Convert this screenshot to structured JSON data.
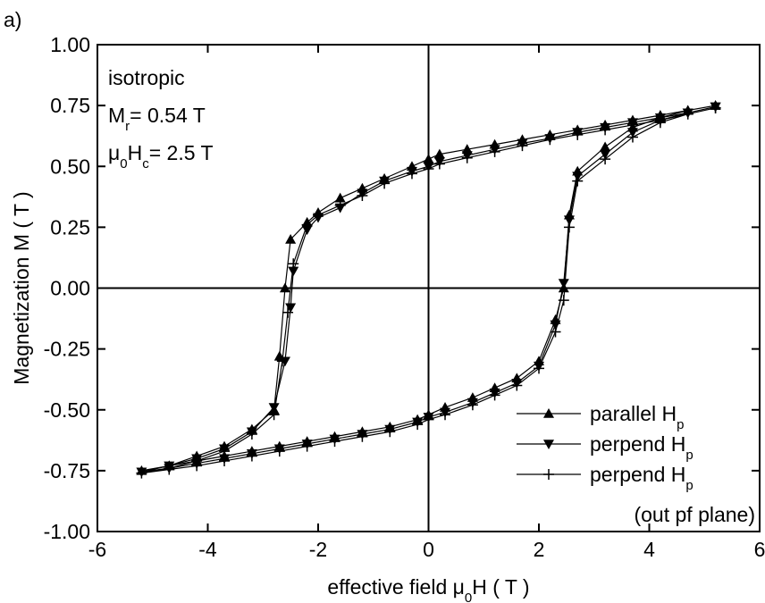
{
  "chart_data": {
    "type": "line",
    "panel_label": "a)",
    "x_label": [
      "effective field μ",
      "0",
      "H ( T )"
    ],
    "y_label": "Magnetization M ( T )",
    "annotations": [
      [
        "isotropic"
      ],
      [
        "M",
        "r",
        "= 0.54 T"
      ],
      [
        "μ",
        "0",
        "H",
        "c",
        "= 2.5 T"
      ]
    ],
    "legend_note": "(out pf plane)",
    "legend": "lower right",
    "xlim": [
      -6,
      6
    ],
    "ylim": [
      -1,
      1
    ],
    "xticks": [
      -6,
      -4,
      -2,
      0,
      2,
      4,
      6
    ],
    "yticks": [
      {
        "value": -1,
        "label": "-1.00"
      },
      {
        "value": -0.75,
        "label": "-0.75"
      },
      {
        "value": -0.5,
        "label": "-0.50"
      },
      {
        "value": -0.25,
        "label": "-0.25"
      },
      {
        "value": 0,
        "label": "0.00"
      },
      {
        "value": 0.25,
        "label": "0.25"
      },
      {
        "value": 0.5,
        "label": "0.50"
      },
      {
        "value": 0.75,
        "label": "0.75"
      },
      {
        "value": 1,
        "label": "1.00"
      }
    ],
    "zero_lines": true,
    "series": [
      {
        "name": [
          "parallel H",
          "p"
        ],
        "color": "#000000",
        "marker": "triangle-up",
        "x": [
          5.2,
          4.7,
          4.2,
          3.7,
          3.2,
          2.7,
          2.2,
          1.7,
          1.2,
          0.7,
          0.2,
          0,
          -0.3,
          -0.8,
          -1.2,
          -1.6,
          -2.0,
          -2.2,
          -2.5,
          -2.6,
          -2.7,
          -2.8,
          -3.2,
          -3.7,
          -4.2,
          -4.7,
          -5.2,
          -4.7,
          -4.2,
          -3.7,
          -3.2,
          -2.7,
          -2.2,
          -1.7,
          -1.2,
          -0.7,
          -0.2,
          0,
          0.3,
          0.8,
          1.2,
          1.6,
          2.0,
          2.3,
          2.45,
          2.55,
          2.7,
          3.2,
          3.7,
          4.2,
          4.7,
          5.2
        ],
        "values": [
          0.75,
          0.73,
          0.71,
          0.69,
          0.67,
          0.65,
          0.63,
          0.61,
          0.59,
          0.57,
          0.55,
          0.53,
          0.5,
          0.45,
          0.41,
          0.37,
          0.31,
          0.27,
          0.2,
          0.0,
          -0.28,
          -0.5,
          -0.58,
          -0.65,
          -0.69,
          -0.73,
          -0.75,
          -0.73,
          -0.71,
          -0.69,
          -0.67,
          -0.65,
          -0.63,
          -0.61,
          -0.59,
          -0.57,
          -0.54,
          -0.52,
          -0.49,
          -0.45,
          -0.41,
          -0.37,
          -0.3,
          -0.13,
          0.0,
          0.3,
          0.48,
          0.58,
          0.66,
          0.7,
          0.73,
          0.75
        ]
      },
      {
        "name": [
          "perpend H",
          "p"
        ],
        "color": "#000000",
        "marker": "triangle-down",
        "x": [
          5.2,
          4.7,
          4.2,
          3.7,
          3.2,
          2.7,
          2.2,
          1.7,
          1.2,
          0.7,
          0.2,
          0,
          -0.3,
          -0.8,
          -1.2,
          -1.6,
          -2.0,
          -2.2,
          -2.45,
          -2.5,
          -2.6,
          -2.8,
          -3.2,
          -3.7,
          -4.2,
          -4.7,
          -5.2,
          -4.7,
          -4.2,
          -3.7,
          -3.2,
          -2.7,
          -2.2,
          -1.7,
          -1.2,
          -0.7,
          -0.2,
          0,
          0.3,
          0.8,
          1.2,
          1.6,
          2.0,
          2.3,
          2.45,
          2.55,
          2.7,
          3.2,
          3.7,
          4.2,
          4.7,
          5.2
        ],
        "values": [
          0.745,
          0.72,
          0.7,
          0.68,
          0.66,
          0.64,
          0.615,
          0.595,
          0.57,
          0.545,
          0.52,
          0.5,
          0.48,
          0.44,
          0.39,
          0.33,
          0.29,
          0.24,
          0.07,
          -0.08,
          -0.3,
          -0.49,
          -0.59,
          -0.66,
          -0.7,
          -0.73,
          -0.755,
          -0.74,
          -0.72,
          -0.7,
          -0.68,
          -0.66,
          -0.64,
          -0.62,
          -0.6,
          -0.58,
          -0.55,
          -0.53,
          -0.51,
          -0.47,
          -0.43,
          -0.39,
          -0.32,
          -0.15,
          0.02,
          0.28,
          0.46,
          0.55,
          0.64,
          0.69,
          0.72,
          0.745
        ]
      },
      {
        "name": [
          "perpend H",
          "p"
        ],
        "color": "#000000",
        "marker": "plus",
        "x": [
          5.2,
          4.7,
          4.2,
          3.7,
          3.2,
          2.7,
          2.2,
          1.7,
          1.2,
          0.7,
          0.2,
          0,
          -0.3,
          -0.8,
          -1.2,
          -1.6,
          -2.0,
          -2.2,
          -2.45,
          -2.55,
          -2.65,
          -2.8,
          -3.2,
          -3.7,
          -4.2,
          -4.7,
          -5.2,
          -4.7,
          -4.2,
          -3.7,
          -3.2,
          -2.7,
          -2.2,
          -1.7,
          -1.2,
          -0.7,
          -0.2,
          0,
          0.3,
          0.8,
          1.2,
          1.6,
          2.0,
          2.3,
          2.45,
          2.55,
          2.7,
          3.2,
          3.7,
          4.2,
          4.7,
          5.2
        ],
        "values": [
          0.74,
          0.715,
          0.69,
          0.67,
          0.65,
          0.63,
          0.61,
          0.585,
          0.56,
          0.535,
          0.51,
          0.49,
          0.47,
          0.43,
          0.38,
          0.34,
          0.3,
          0.26,
          0.1,
          -0.1,
          -0.3,
          -0.52,
          -0.6,
          -0.67,
          -0.71,
          -0.74,
          -0.76,
          -0.745,
          -0.73,
          -0.71,
          -0.69,
          -0.67,
          -0.65,
          -0.63,
          -0.61,
          -0.59,
          -0.56,
          -0.54,
          -0.52,
          -0.48,
          -0.44,
          -0.4,
          -0.33,
          -0.18,
          -0.05,
          0.25,
          0.44,
          0.53,
          0.62,
          0.68,
          0.715,
          0.74
        ]
      }
    ]
  }
}
